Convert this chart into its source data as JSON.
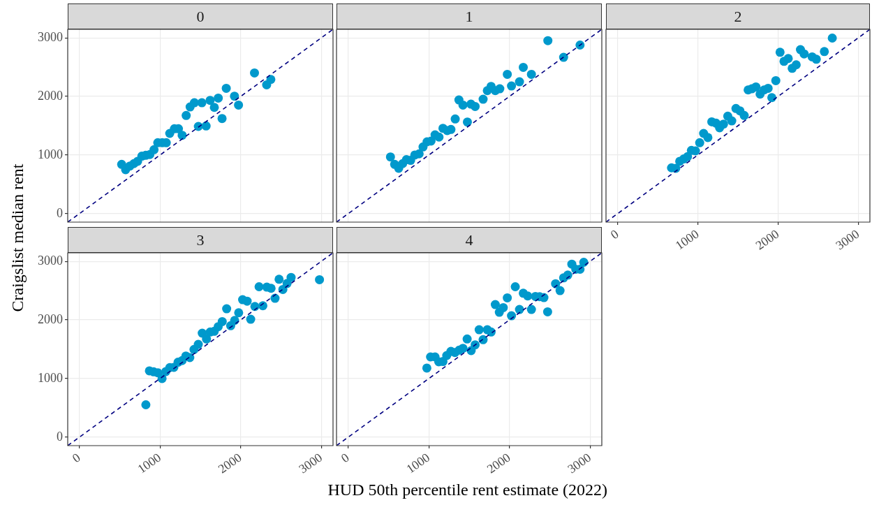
{
  "chart_data": [
    {
      "type": "scatter",
      "title": "0",
      "xlabel": "HUD 50th percentile rent estimate (2022)",
      "ylabel": "Craigslist median rent",
      "xlim": [
        -145,
        3145
      ],
      "ylim": [
        -145,
        3145
      ],
      "xticks": [
        0,
        1000,
        2000,
        3000
      ],
      "yticks": [
        0,
        1000,
        2000,
        3000
      ],
      "grid": true,
      "tick_labels": "y",
      "marker": "circle",
      "series": [
        {
          "type": "scatter",
          "color": "#0099cc",
          "x": [
            524,
            573,
            626,
            675,
            722,
            774,
            823,
            873,
            925,
            972,
            1027,
            1077,
            1120,
            1178,
            1228,
            1274,
            1324,
            1373,
            1426,
            1475,
            1519,
            1571,
            1621,
            1673,
            1722,
            1769,
            1821,
            1923,
            1973,
            2171,
            2322,
            2374
          ],
          "values": [
            841,
            750,
            813,
            853,
            893,
            980,
            996,
            1008,
            1091,
            1210,
            1210,
            1210,
            1369,
            1448,
            1448,
            1337,
            1675,
            1821,
            1893,
            1488,
            1893,
            1496,
            1933,
            1813,
            1972,
            1623,
            2139,
            2004,
            1853,
            2401,
            2198,
            2290
          ]
        },
        {
          "type": "line",
          "color": "#000080",
          "line_style": "dashed",
          "marker": "none",
          "x": [
            -145,
            3145
          ],
          "values": [
            -145,
            3145
          ]
        }
      ]
    },
    {
      "type": "scatter",
      "title": "1",
      "xlim": [
        -145,
        3145
      ],
      "ylim": [
        -145,
        3145
      ],
      "xticks": [
        0,
        1000,
        2000,
        3000
      ],
      "yticks": [
        0,
        1000,
        2000,
        3000
      ],
      "grid": true,
      "tick_labels": false,
      "marker": "circle",
      "series": [
        {
          "type": "scatter",
          "color": "#0099cc",
          "x": [
            524,
            576,
            626,
            675,
            722,
            774,
            826,
            879,
            928,
            978,
            1027,
            1077,
            1126,
            1175,
            1228,
            1274,
            1327,
            1373,
            1423,
            1478,
            1522,
            1574,
            1673,
            1725,
            1772,
            1824,
            1880,
            1973,
            2025,
            2124,
            2171,
            2272,
            2476,
            2671,
            2875
          ],
          "values": [
            968,
            841,
            774,
            853,
            921,
            909,
            1000,
            1020,
            1139,
            1226,
            1238,
            1345,
            1306,
            1456,
            1417,
            1437,
            1615,
            1940,
            1853,
            1563,
            1869,
            1829,
            1952,
            2099,
            2171,
            2099,
            2131,
            2377,
            2179,
            2250,
            2496,
            2377,
            2952,
            2667,
            2877
          ]
        },
        {
          "type": "line",
          "color": "#000080",
          "line_style": "dashed",
          "marker": "none",
          "x": [
            -145,
            3145
          ],
          "values": [
            -145,
            3145
          ]
        }
      ]
    },
    {
      "type": "scatter",
      "title": "2",
      "xlim": [
        -145,
        3145
      ],
      "ylim": [
        -145,
        3145
      ],
      "xticks": [
        0,
        1000,
        2000,
        3000
      ],
      "yticks": [
        0,
        1000,
        2000,
        3000
      ],
      "grid": true,
      "tick_labels": "x",
      "marker": "circle",
      "series": [
        {
          "type": "scatter",
          "color": "#0099cc",
          "x": [
            672,
            725,
            774,
            824,
            871,
            920,
            970,
            1023,
            1072,
            1125,
            1174,
            1227,
            1271,
            1320,
            1373,
            1423,
            1475,
            1525,
            1578,
            1627,
            1674,
            1724,
            1776,
            1826,
            1876,
            1922,
            1972,
            2025,
            2074,
            2127,
            2176,
            2226,
            2279,
            2325,
            2425,
            2477,
            2577,
            2676
          ],
          "values": [
            782,
            774,
            893,
            933,
            972,
            1079,
            1071,
            1210,
            1369,
            1298,
            1567,
            1544,
            1464,
            1528,
            1663,
            1583,
            1794,
            1754,
            1675,
            2111,
            2131,
            2163,
            2040,
            2111,
            2139,
            1980,
            2270,
            2754,
            2599,
            2647,
            2480,
            2540,
            2798,
            2726,
            2675,
            2635,
            2766,
            2996
          ]
        },
        {
          "type": "line",
          "color": "#000080",
          "line_style": "dashed",
          "marker": "none",
          "x": [
            -145,
            3145
          ],
          "values": [
            -145,
            3145
          ]
        }
      ]
    },
    {
      "type": "scatter",
      "title": "3",
      "xlim": [
        -145,
        3145
      ],
      "ylim": [
        -145,
        3145
      ],
      "xticks": [
        0,
        1000,
        2000,
        3000
      ],
      "yticks": [
        0,
        1000,
        2000,
        3000
      ],
      "grid": true,
      "marker": "circle",
      "series": [
        {
          "type": "scatter",
          "color": "#0099cc",
          "x": [
            824,
            868,
            920,
            973,
            1025,
            1072,
            1121,
            1171,
            1223,
            1273,
            1320,
            1369,
            1421,
            1474,
            1523,
            1576,
            1622,
            1672,
            1721,
            1771,
            1826,
            1876,
            1925,
            1975,
            2024,
            2080,
            2124,
            2176,
            2228,
            2275,
            2324,
            2377,
            2426,
            2476,
            2523,
            2575,
            2625,
            2977
          ],
          "values": [
            552,
            1131,
            1115,
            1099,
            1000,
            1119,
            1187,
            1190,
            1278,
            1306,
            1385,
            1357,
            1496,
            1583,
            1774,
            1675,
            1794,
            1806,
            1885,
            1972,
            2190,
            1901,
            1992,
            2123,
            2345,
            2321,
            2012,
            2230,
            2567,
            2242,
            2560,
            2540,
            2369,
            2694,
            2520,
            2623,
            2726,
            2687
          ]
        },
        {
          "type": "line",
          "color": "#000080",
          "line_style": "dashed",
          "marker": "none",
          "x": [
            -145,
            3145
          ],
          "values": [
            -145,
            3145
          ]
        }
      ]
    },
    {
      "type": "scatter",
      "title": "4",
      "xlim": [
        -145,
        3145
      ],
      "ylim": [
        -145,
        3145
      ],
      "xticks": [
        0,
        1000,
        2000,
        3000
      ],
      "yticks": [
        0,
        1000,
        2000,
        3000
      ],
      "grid": true,
      "tick_labels": "x",
      "marker": "circle",
      "series": [
        {
          "type": "scatter",
          "color": "#0099cc",
          "x": [
            975,
            1021,
            1077,
            1123,
            1175,
            1222,
            1274,
            1324,
            1376,
            1423,
            1475,
            1525,
            1574,
            1624,
            1673,
            1725,
            1772,
            1824,
            1874,
            1923,
            1973,
            2025,
            2072,
            2124,
            2171,
            2226,
            2272,
            2322,
            2374,
            2427,
            2473,
            2572,
            2627,
            2671,
            2723,
            2773,
            2822,
            2875,
            2921
          ],
          "values": [
            1179,
            1369,
            1369,
            1286,
            1290,
            1393,
            1464,
            1444,
            1484,
            1516,
            1675,
            1476,
            1575,
            1833,
            1663,
            1833,
            1794,
            2262,
            2131,
            2210,
            2377,
            2071,
            2567,
            2179,
            2456,
            2409,
            2179,
            2401,
            2397,
            2381,
            2139,
            2619,
            2500,
            2718,
            2766,
            2952,
            2865,
            2865,
            2984
          ]
        },
        {
          "type": "line",
          "color": "#000080",
          "line_style": "dashed",
          "marker": "none",
          "x": [
            -145,
            3145
          ],
          "values": [
            -145,
            3145
          ]
        }
      ]
    }
  ]
}
